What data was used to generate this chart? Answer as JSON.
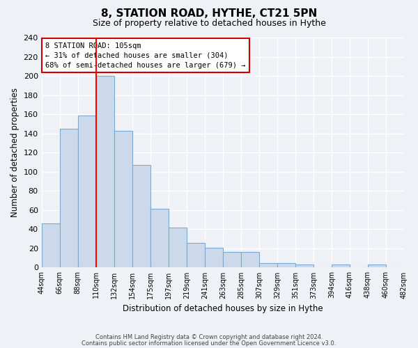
{
  "title": "8, STATION ROAD, HYTHE, CT21 5PN",
  "subtitle": "Size of property relative to detached houses in Hythe",
  "xlabel": "Distribution of detached houses by size in Hythe",
  "ylabel": "Number of detached properties",
  "categories": [
    "44sqm",
    "66sqm",
    "88sqm",
    "110sqm",
    "132sqm",
    "154sqm",
    "175sqm",
    "197sqm",
    "219sqm",
    "241sqm",
    "263sqm",
    "285sqm",
    "307sqm",
    "329sqm",
    "351sqm",
    "373sqm",
    "394sqm",
    "416sqm",
    "438sqm",
    "460sqm",
    "482sqm"
  ],
  "values": [
    46,
    145,
    159,
    200,
    143,
    107,
    61,
    42,
    26,
    21,
    16,
    16,
    5,
    5,
    3,
    0,
    3,
    0,
    3,
    0
  ],
  "bar_color": "#ccd9ea",
  "bar_edge_color": "#7fa8cc",
  "redline_x": 3.0,
  "ylim": [
    0,
    240
  ],
  "yticks": [
    0,
    20,
    40,
    60,
    80,
    100,
    120,
    140,
    160,
    180,
    200,
    220,
    240
  ],
  "annotation_title": "8 STATION ROAD: 105sqm",
  "annotation_line1": "← 31% of detached houses are smaller (304)",
  "annotation_line2": "68% of semi-detached houses are larger (679) →",
  "footer1": "Contains HM Land Registry data © Crown copyright and database right 2024.",
  "footer2": "Contains public sector information licensed under the Open Government Licence v3.0.",
  "background_color": "#eef2f7"
}
